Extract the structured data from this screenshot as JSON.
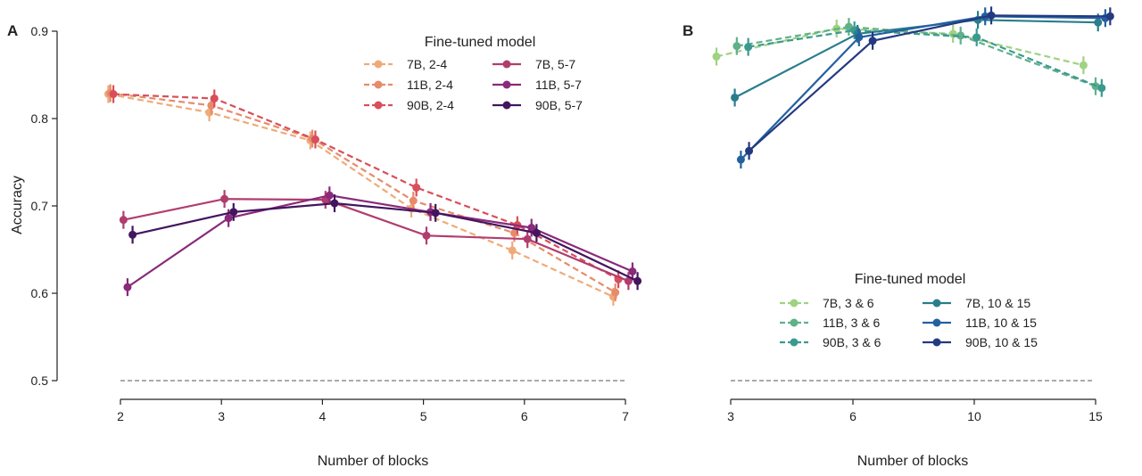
{
  "chart_data": [
    {
      "type": "line",
      "panel_label": "A",
      "xlabel": "Number of blocks",
      "ylabel": "Accuracy",
      "xticks": [
        2,
        3,
        4,
        5,
        6,
        7
      ],
      "xlim": [
        1.9,
        7.2
      ],
      "yticks": [
        "0.5",
        "0.6",
        "0.7",
        "0.8",
        "0.9"
      ],
      "ylim": [
        0.49,
        0.9
      ],
      "baseline": 0.5,
      "legend": {
        "title": "Fine-tuned model",
        "position": "top-right",
        "columns": 2
      },
      "series": [
        {
          "name": "7B, 2-4",
          "color": "#eeab79",
          "dash": true,
          "offset": -0.12,
          "points": [
            [
              2,
              0.828
            ],
            [
              3,
              0.807
            ],
            [
              4,
              0.775
            ],
            [
              5,
              0.697
            ],
            [
              6,
              0.649
            ],
            [
              7,
              0.596
            ]
          ]
        },
        {
          "name": "11B, 2-4",
          "color": "#e78b6a",
          "dash": true,
          "offset": -0.1,
          "points": [
            [
              2,
              0.829
            ],
            [
              3,
              0.815
            ],
            [
              4,
              0.777
            ],
            [
              5,
              0.706
            ],
            [
              6,
              0.669
            ],
            [
              7,
              0.601
            ]
          ]
        },
        {
          "name": "90B, 2-4",
          "color": "#d84f5b",
          "dash": true,
          "offset": -0.07,
          "points": [
            [
              2,
              0.828
            ],
            [
              3,
              0.823
            ],
            [
              4,
              0.776
            ],
            [
              5,
              0.721
            ],
            [
              6,
              0.678
            ],
            [
              7,
              0.616
            ]
          ]
        },
        {
          "name": "7B, 5-7",
          "color": "#b13d6f",
          "dash": false,
          "offset": 0.03,
          "points": [
            [
              2,
              0.684
            ],
            [
              3,
              0.708
            ],
            [
              4,
              0.707
            ],
            [
              5,
              0.666
            ],
            [
              6,
              0.662
            ],
            [
              7,
              0.614
            ]
          ]
        },
        {
          "name": "11B, 5-7",
          "color": "#8a2a7a",
          "dash": false,
          "offset": 0.07,
          "points": [
            [
              2,
              0.607
            ],
            [
              3,
              0.686
            ],
            [
              4,
              0.712
            ],
            [
              5,
              0.693
            ],
            [
              6,
              0.675
            ],
            [
              7,
              0.625
            ]
          ]
        },
        {
          "name": "90B, 5-7",
          "color": "#43155f",
          "dash": false,
          "offset": 0.12,
          "points": [
            [
              2,
              0.667
            ],
            [
              3,
              0.693
            ],
            [
              4,
              0.703
            ],
            [
              5,
              0.692
            ],
            [
              6,
              0.669
            ],
            [
              7,
              0.614
            ]
          ]
        }
      ]
    },
    {
      "type": "line",
      "panel_label": "B",
      "xlabel": "Number of blocks",
      "ylabel": "",
      "xticks": [
        3,
        6,
        10,
        15
      ],
      "xlim": [
        2.8,
        15.5
      ],
      "yticks": [],
      "ylim": [
        0.49,
        0.9
      ],
      "baseline": 0.5,
      "legend": {
        "title": "Fine-tuned model",
        "position": "lower-right",
        "columns": 2
      },
      "series": [
        {
          "name": "7B, 3 & 6",
          "color": "#9fd283",
          "dash": true,
          "offset": 0,
          "points": [
            [
              2.65,
              0.871
            ],
            [
              5.6,
              0.903
            ],
            [
              9.3,
              0.897
            ],
            [
              14.5,
              0.861
            ]
          ]
        },
        {
          "name": "11B, 3 & 6",
          "color": "#61b08a",
          "dash": true,
          "offset": 0,
          "points": [
            [
              3.15,
              0.883
            ],
            [
              5.9,
              0.905
            ],
            [
              9.55,
              0.895
            ],
            [
              15.0,
              0.837
            ]
          ]
        },
        {
          "name": "90B, 3 & 6",
          "color": "#3a9a90",
          "dash": true,
          "offset": 0,
          "points": [
            [
              3.43,
              0.882
            ],
            [
              6.05,
              0.901
            ],
            [
              10.1,
              0.893
            ],
            [
              15.25,
              0.835
            ]
          ]
        },
        {
          "name": "7B, 10 & 15",
          "color": "#2a7d8c",
          "dash": false,
          "offset": 0,
          "points": [
            [
              3.1,
              0.824
            ],
            [
              6.15,
              0.897
            ],
            [
              10.15,
              0.913
            ],
            [
              15.1,
              0.91
            ]
          ]
        },
        {
          "name": "11B, 10 & 15",
          "color": "#2360a0",
          "dash": false,
          "offset": 0,
          "points": [
            [
              3.25,
              0.753
            ],
            [
              6.2,
              0.893
            ],
            [
              10.45,
              0.917
            ],
            [
              15.4,
              0.915
            ]
          ]
        },
        {
          "name": "90B, 10 & 15",
          "color": "#243a80",
          "dash": false,
          "offset": 0,
          "points": [
            [
              3.45,
              0.763
            ],
            [
              6.65,
              0.889
            ],
            [
              10.7,
              0.918
            ],
            [
              15.6,
              0.917
            ]
          ]
        }
      ]
    }
  ]
}
